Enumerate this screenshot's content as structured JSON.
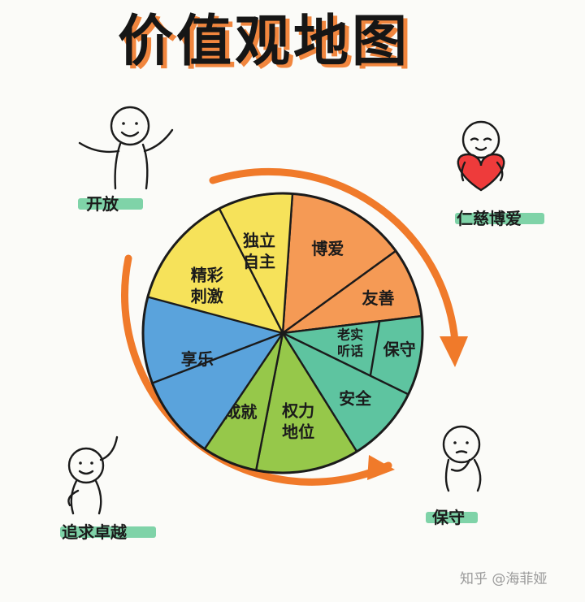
{
  "title": "价值观地图",
  "wheel": {
    "segments": [
      {
        "id": "boai",
        "label": [
          "博爱"
        ],
        "color": "#f59a55"
      },
      {
        "id": "shanliang",
        "label": [
          "友善"
        ],
        "color": "#f59a55"
      },
      {
        "id": "baoshou",
        "label": [
          "保守"
        ],
        "color": "#5ec4a0"
      },
      {
        "id": "laoshi",
        "label": [
          "老实",
          "听话"
        ],
        "color": "#5ec4a0"
      },
      {
        "id": "anquan",
        "label": [
          "安全"
        ],
        "color": "#5ec4a0"
      },
      {
        "id": "quanli",
        "label": [
          "权力",
          "地位"
        ],
        "color": "#96c84a"
      },
      {
        "id": "chengjiu",
        "label": [
          "成就"
        ],
        "color": "#96c84a"
      },
      {
        "id": "xiangle",
        "label": [
          "享乐"
        ],
        "color": "#5aa3dc"
      },
      {
        "id": "jingcai",
        "label": [
          "精彩",
          "刺激"
        ],
        "color": "#f6e25a"
      },
      {
        "id": "duli",
        "label": [
          "独立",
          "自主"
        ],
        "color": "#f6e25a"
      }
    ]
  },
  "quadrants": {
    "top_left": "开放",
    "top_right": "仁慈博爱",
    "bottom_right": "保守",
    "bottom_left": "追求卓越"
  },
  "watermark": "知乎 @海菲娅",
  "colors": {
    "arrow": "#f07a2a",
    "label_shadow": "#7fd3a8",
    "heart": "#ee3b3b",
    "outline": "#1b1b1b"
  }
}
